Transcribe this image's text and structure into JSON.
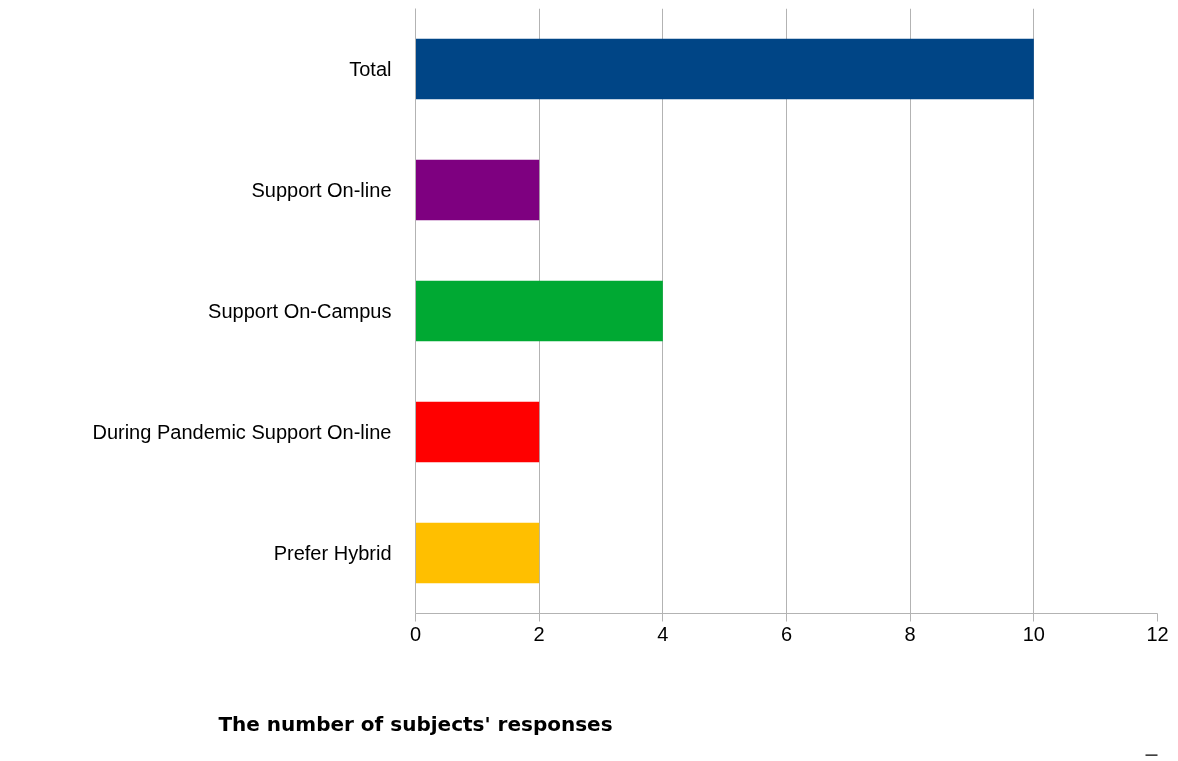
{
  "chart_data": {
    "type": "bar",
    "orientation": "horizontal",
    "xlabel": "The number of subjects' responses",
    "categories": [
      "Total",
      "Support On-line",
      "Support On-Campus",
      "During Pandemic Support On-line",
      "Prefer Hybrid"
    ],
    "values": [
      10,
      2,
      4,
      2,
      2
    ],
    "colors": [
      "#004586",
      "#7e0080",
      "#00a933",
      "#ff0000",
      "#ffbf00"
    ],
    "xlim": [
      0,
      12
    ],
    "xticks": [
      0,
      2,
      4,
      6,
      8,
      10,
      12
    ],
    "grid": "x"
  }
}
